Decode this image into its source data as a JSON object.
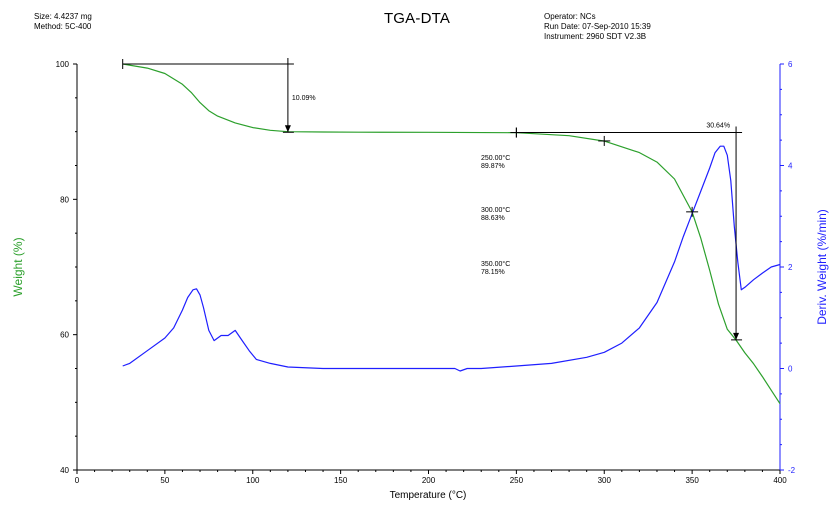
{
  "header": {
    "size_label": "Size:",
    "size_value": "4.4237 mg",
    "method_label": "Method:",
    "method_value": "5C-400",
    "operator_label": "Operator:",
    "operator_value": "NCs",
    "run_date_label": "Run Date:",
    "run_date_value": "07-Sep-2010 15:39",
    "instrument_label": "Instrument:",
    "instrument_value": "2960 SDT V2.3B"
  },
  "chart_data": {
    "type": "line",
    "title": "TGA-DTA",
    "xlabel": "Temperature (°C)",
    "ylabel": "Weight (%)",
    "y2label": "Deriv. Weight (%/min)",
    "xlim": [
      0,
      400
    ],
    "ylim": [
      40,
      100
    ],
    "y2lim": [
      -2,
      6
    ],
    "x_ticks": [
      0,
      50,
      100,
      150,
      200,
      250,
      300,
      350,
      400
    ],
    "y_ticks": [
      40,
      60,
      80,
      100
    ],
    "y2_ticks": [
      -2,
      0,
      2,
      4,
      6
    ],
    "grid": false,
    "colors": {
      "weight": "#2ca02c",
      "deriv": "#1f1fff",
      "axis": "#000000",
      "y2axis": "#1f1fff"
    },
    "series": [
      {
        "key": "weight",
        "axis": "left",
        "x": [
          26,
          40,
          50,
          60,
          65,
          70,
          75,
          80,
          90,
          100,
          110,
          120,
          140,
          160,
          200,
          250,
          280,
          300,
          320,
          330,
          340,
          350,
          355,
          360,
          365,
          370,
          375,
          380,
          385,
          390,
          395,
          400
        ],
        "values": [
          100,
          99.4,
          98.6,
          97,
          95.8,
          94.3,
          93.1,
          92.3,
          91.3,
          90.6,
          90.2,
          90.0,
          89.95,
          89.92,
          89.9,
          89.85,
          89.4,
          88.6,
          86.9,
          85.5,
          83.0,
          78.15,
          74.2,
          69.5,
          64.5,
          60.8,
          59.2,
          57.3,
          55.7,
          53.8,
          51.8,
          49.8
        ]
      },
      {
        "key": "deriv",
        "axis": "right",
        "x": [
          26,
          30,
          40,
          50,
          55,
          60,
          63,
          66,
          68,
          70,
          72,
          75,
          78,
          82,
          86,
          90,
          94,
          98,
          102,
          110,
          120,
          140,
          160,
          200,
          215,
          218,
          222,
          230,
          250,
          270,
          290,
          300,
          310,
          320,
          330,
          340,
          345,
          350,
          355,
          360,
          363,
          366,
          368,
          370,
          372,
          374,
          376,
          378,
          380,
          385,
          390,
          395,
          400
        ],
        "values": [
          0.05,
          0.1,
          0.35,
          0.6,
          0.8,
          1.15,
          1.4,
          1.55,
          1.57,
          1.45,
          1.2,
          0.75,
          0.55,
          0.65,
          0.65,
          0.75,
          0.55,
          0.35,
          0.18,
          0.1,
          0.03,
          0.0,
          0.0,
          0.0,
          0.0,
          -0.05,
          0.0,
          0.0,
          0.05,
          0.1,
          0.22,
          0.32,
          0.5,
          0.8,
          1.3,
          2.1,
          2.6,
          3.05,
          3.5,
          3.95,
          4.25,
          4.38,
          4.38,
          4.2,
          3.7,
          2.8,
          2.1,
          1.55,
          1.6,
          1.75,
          1.88,
          2.0,
          2.05
        ]
      }
    ],
    "annotations": {
      "step1_label": "10.09%",
      "step1": {
        "x": 120,
        "y_from": 100,
        "y_to": 89.91,
        "x_from": 26
      },
      "step2_label": "30.64%",
      "step2": {
        "x": 375,
        "y_from": 89.87,
        "y_to": 59.23,
        "x_from": 250
      },
      "points": [
        {
          "x": 250,
          "y": 89.87,
          "temp_label": "250.00°C",
          "weight_label": "89.87%"
        },
        {
          "x": 300,
          "y": 88.63,
          "temp_label": "300.00°C",
          "weight_label": "88.63%"
        },
        {
          "x": 350,
          "y": 78.15,
          "temp_label": "350.00°C",
          "weight_label": "78.15%"
        }
      ]
    }
  }
}
